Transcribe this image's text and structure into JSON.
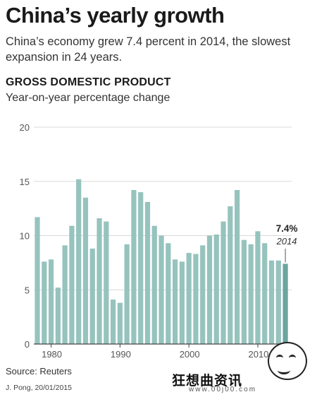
{
  "header": {
    "title": "China’s yearly growth",
    "subtitle": "China’s economy grew 7.4 percent in 2014, the slowest expansion in 24 years."
  },
  "chart_data": {
    "type": "bar",
    "title": "GROSS DOMESTIC PRODUCT",
    "subtitle": "Year-on-year percentage change",
    "xlabel": "",
    "ylabel": "",
    "ylim": [
      0,
      20
    ],
    "yticks": [
      20,
      15,
      10,
      5,
      0
    ],
    "xticks": [
      1980,
      1990,
      2000,
      2010
    ],
    "grid": true,
    "colors": {
      "bar": "#96c3bd",
      "bar_highlight": "#6aa59e",
      "grid": "#d9d9d9"
    },
    "categories": [
      1978,
      1979,
      1980,
      1981,
      1982,
      1983,
      1984,
      1985,
      1986,
      1987,
      1988,
      1989,
      1990,
      1991,
      1992,
      1993,
      1994,
      1995,
      1996,
      1997,
      1998,
      1999,
      2000,
      2001,
      2002,
      2003,
      2004,
      2005,
      2006,
      2007,
      2008,
      2009,
      2010,
      2011,
      2012,
      2013,
      2014
    ],
    "values": [
      11.7,
      7.6,
      7.8,
      5.2,
      9.1,
      10.9,
      15.2,
      13.5,
      8.8,
      11.6,
      11.3,
      4.1,
      3.8,
      9.2,
      14.2,
      14.0,
      13.1,
      10.9,
      10.0,
      9.3,
      7.8,
      7.6,
      8.4,
      8.3,
      9.1,
      10.0,
      10.1,
      11.3,
      12.7,
      14.2,
      9.6,
      9.2,
      10.4,
      9.3,
      7.7,
      7.7,
      7.4
    ],
    "annotation": {
      "value_label": "7.4%",
      "year_label": "2014"
    }
  },
  "footer": {
    "source": "Source: Reuters",
    "credit": "J. Pong, 20/01/2015"
  },
  "watermark": {
    "text": "狂想曲资讯",
    "url": "www.00j00.com"
  }
}
